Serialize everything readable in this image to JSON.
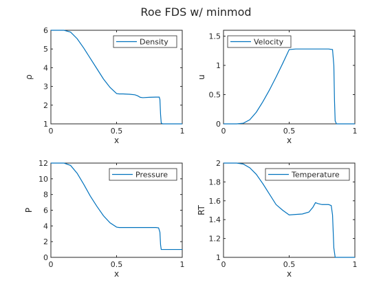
{
  "figure": {
    "title": "Roe FDS w/ minmod"
  },
  "chart_data": [
    {
      "type": "line",
      "xlabel": "x",
      "ylabel": "ρ",
      "xlim": [
        0,
        1
      ],
      "ylim": [
        1,
        6
      ],
      "xticks": [
        0,
        0.5,
        1
      ],
      "xtick_labels": [
        "0",
        "0.5",
        "1"
      ],
      "yticks": [
        1,
        2,
        3,
        4,
        5,
        6
      ],
      "ytick_labels": [
        "1",
        "2",
        "3",
        "4",
        "5",
        "6"
      ],
      "legend_position": "top-right",
      "line_color": "#0072bd",
      "series": [
        {
          "name": "Density",
          "x": [
            0,
            0.1,
            0.15,
            0.2,
            0.25,
            0.3,
            0.35,
            0.4,
            0.45,
            0.5,
            0.52,
            0.55,
            0.6,
            0.64,
            0.66,
            0.68,
            0.7,
            0.75,
            0.8,
            0.825,
            0.83,
            0.835,
            0.84,
            0.85,
            0.9,
            1
          ],
          "y": [
            6,
            6,
            5.9,
            5.55,
            5.05,
            4.5,
            3.95,
            3.4,
            2.95,
            2.62,
            2.6,
            2.6,
            2.58,
            2.55,
            2.5,
            2.42,
            2.4,
            2.42,
            2.43,
            2.43,
            2.3,
            1.5,
            1.05,
            1,
            1,
            1
          ]
        }
      ]
    },
    {
      "type": "line",
      "xlabel": "x",
      "ylabel": "u",
      "xlim": [
        0,
        1
      ],
      "ylim": [
        0,
        1.6
      ],
      "xticks": [
        0,
        0.5,
        1
      ],
      "xtick_labels": [
        "0",
        "0.5",
        "1"
      ],
      "yticks": [
        0,
        0.5,
        1,
        1.5
      ],
      "ytick_labels": [
        "0",
        "0.5",
        "1",
        "1.5"
      ],
      "legend_position": "top-left",
      "line_color": "#0072bd",
      "series": [
        {
          "name": "Velocity",
          "x": [
            0,
            0.1,
            0.15,
            0.2,
            0.25,
            0.3,
            0.35,
            0.4,
            0.45,
            0.5,
            0.55,
            0.6,
            0.7,
            0.8,
            0.83,
            0.84,
            0.845,
            0.85,
            0.86,
            0.9,
            1
          ],
          "y": [
            0,
            0,
            0.01,
            0.07,
            0.2,
            0.38,
            0.58,
            0.8,
            1.03,
            1.27,
            1.28,
            1.28,
            1.28,
            1.28,
            1.27,
            1.0,
            0.4,
            0.05,
            0,
            0,
            0
          ]
        }
      ]
    },
    {
      "type": "line",
      "xlabel": "x",
      "ylabel": "P",
      "xlim": [
        0,
        1
      ],
      "ylim": [
        0,
        12
      ],
      "xticks": [
        0,
        0.5,
        1
      ],
      "xtick_labels": [
        "0",
        "0.5",
        "1"
      ],
      "yticks": [
        0,
        2,
        4,
        6,
        8,
        10,
        12
      ],
      "ytick_labels": [
        "0",
        "2",
        "4",
        "6",
        "8",
        "10",
        "12"
      ],
      "legend_position": "top-right",
      "line_color": "#0072bd",
      "series": [
        {
          "name": "Pressure",
          "x": [
            0,
            0.1,
            0.15,
            0.2,
            0.25,
            0.3,
            0.35,
            0.4,
            0.45,
            0.5,
            0.52,
            0.6,
            0.7,
            0.8,
            0.82,
            0.83,
            0.835,
            0.84,
            0.85,
            0.9,
            1
          ],
          "y": [
            12,
            12,
            11.7,
            10.7,
            9.3,
            7.8,
            6.5,
            5.3,
            4.4,
            3.85,
            3.8,
            3.8,
            3.8,
            3.8,
            3.75,
            3.2,
            1.6,
            1.0,
            1,
            1,
            1
          ]
        }
      ]
    },
    {
      "type": "line",
      "xlabel": "x",
      "ylabel": "RT",
      "xlim": [
        0,
        1
      ],
      "ylim": [
        1,
        2
      ],
      "xticks": [
        0,
        0.5,
        1
      ],
      "xtick_labels": [
        "0",
        "0.5",
        "1"
      ],
      "yticks": [
        1,
        1.2,
        1.4,
        1.6,
        1.8,
        2
      ],
      "ytick_labels": [
        "1",
        "1.2",
        "1.4",
        "1.6",
        "1.8",
        "2"
      ],
      "legend_position": "top-right",
      "line_color": "#0072bd",
      "series": [
        {
          "name": "Temperature",
          "x": [
            0,
            0.1,
            0.15,
            0.2,
            0.25,
            0.3,
            0.35,
            0.4,
            0.45,
            0.5,
            0.55,
            0.6,
            0.65,
            0.68,
            0.7,
            0.72,
            0.75,
            0.8,
            0.82,
            0.83,
            0.84,
            0.85,
            0.9,
            1
          ],
          "y": [
            2,
            2,
            1.99,
            1.95,
            1.88,
            1.78,
            1.67,
            1.56,
            1.5,
            1.45,
            1.455,
            1.46,
            1.48,
            1.53,
            1.58,
            1.57,
            1.56,
            1.56,
            1.55,
            1.45,
            1.1,
            1,
            1,
            1
          ]
        }
      ]
    }
  ]
}
